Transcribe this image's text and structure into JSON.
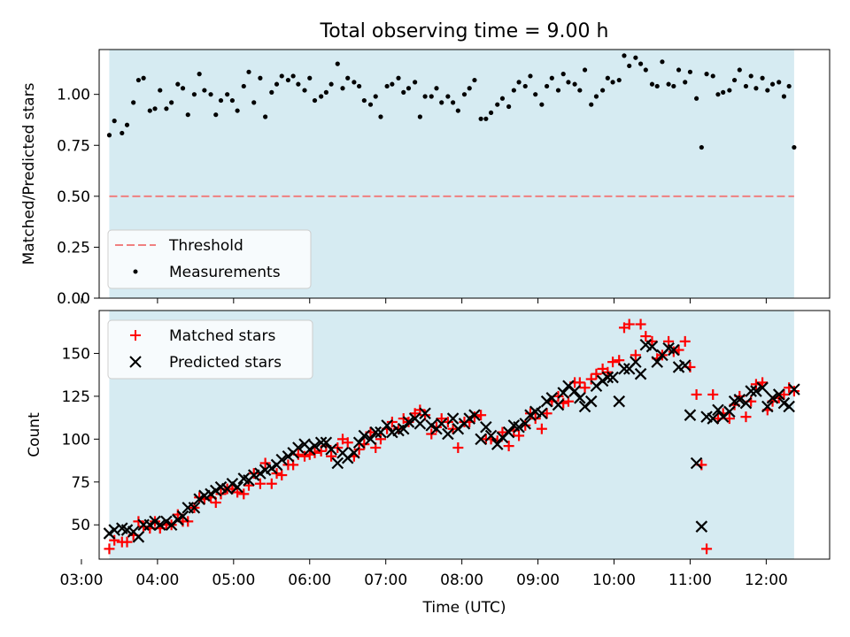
{
  "figure": {
    "title": "Total observing time = 9.00 h",
    "xlabel": "Time (UTC)"
  },
  "colors": {
    "shade": "#add8e6",
    "threshold": "#f08080",
    "matched": "#ff0000",
    "predicted": "#000000",
    "measurements": "#000000"
  },
  "chart_data": [
    {
      "type": "scatter",
      "ylabel": "Matched/Predicted stars",
      "xlim": [
        "03:14",
        "12:50"
      ],
      "ylim": [
        0,
        1.22
      ],
      "yticks": [
        0.0,
        0.25,
        0.5,
        0.75,
        1.0
      ],
      "ytick_labels": [
        "0.00",
        "0.25",
        "0.50",
        "0.75",
        "1.00"
      ],
      "shaded_span": [
        "03:22",
        "12:22"
      ],
      "threshold": 0.5,
      "legend": {
        "position": "lower-left",
        "entries": [
          "Threshold",
          "Measurements"
        ]
      },
      "series": [
        {
          "name": "Measurements",
          "marker": "dot",
          "x": [
            "03:22",
            "03:26",
            "03:32",
            "03:36",
            "03:41",
            "03:45",
            "03:49",
            "03:54",
            "03:58",
            "04:02",
            "04:07",
            "04:11",
            "04:16",
            "04:20",
            "04:24",
            "04:29",
            "04:33",
            "04:37",
            "04:42",
            "04:46",
            "04:50",
            "04:55",
            "04:59",
            "05:03",
            "05:08",
            "05:12",
            "05:16",
            "05:21",
            "05:25",
            "05:30",
            "05:34",
            "05:38",
            "05:43",
            "05:47",
            "05:51",
            "05:56",
            "06:00",
            "06:04",
            "06:09",
            "06:13",
            "06:17",
            "06:22",
            "06:26",
            "06:30",
            "06:35",
            "06:39",
            "06:43",
            "06:48",
            "06:52",
            "06:56",
            "07:01",
            "07:05",
            "07:10",
            "07:14",
            "07:18",
            "07:23",
            "07:27",
            "07:31",
            "07:36",
            "07:40",
            "07:44",
            "07:49",
            "07:53",
            "07:57",
            "08:02",
            "08:06",
            "08:10",
            "08:15",
            "08:19",
            "08:23",
            "08:28",
            "08:32",
            "08:37",
            "08:41",
            "08:45",
            "08:50",
            "08:54",
            "08:58",
            "09:03",
            "09:07",
            "09:11",
            "09:16",
            "09:20",
            "09:24",
            "09:29",
            "09:33",
            "09:37",
            "09:42",
            "09:46",
            "09:51",
            "09:55",
            "09:59",
            "10:04",
            "10:08",
            "10:12",
            "10:17",
            "10:21",
            "10:25",
            "10:30",
            "10:34",
            "10:38",
            "10:43",
            "10:47",
            "10:51",
            "10:56",
            "11:00",
            "11:05",
            "11:09",
            "11:13",
            "11:18",
            "11:22",
            "11:26",
            "11:31",
            "11:35",
            "11:39",
            "11:44",
            "11:48",
            "11:52",
            "11:57",
            "12:01",
            "12:05",
            "12:10",
            "12:14",
            "12:18",
            "12:22"
          ],
          "y": [
            0.8,
            0.87,
            0.81,
            0.85,
            0.96,
            1.07,
            1.08,
            0.92,
            0.93,
            1.02,
            0.93,
            0.96,
            1.05,
            1.03,
            0.9,
            1.0,
            1.1,
            1.02,
            1.0,
            0.9,
            0.97,
            1.0,
            0.97,
            0.92,
            1.04,
            1.11,
            0.96,
            1.08,
            0.89,
            1.01,
            1.05,
            1.09,
            1.07,
            1.09,
            1.05,
            1.02,
            1.08,
            0.97,
            0.99,
            1.01,
            1.05,
            1.15,
            1.03,
            1.08,
            1.06,
            1.04,
            0.97,
            0.95,
            0.99,
            0.89,
            1.04,
            1.05,
            1.08,
            1.01,
            1.03,
            1.06,
            0.89,
            0.99,
            0.99,
            1.03,
            0.96,
            0.99,
            0.96,
            0.92,
            1.0,
            1.03,
            1.07,
            0.88,
            0.88,
            0.91,
            0.95,
            0.98,
            0.94,
            1.02,
            1.06,
            1.04,
            1.09,
            1.0,
            0.95,
            1.04,
            1.08,
            1.02,
            1.1,
            1.06,
            1.05,
            1.02,
            1.12,
            0.95,
            0.99,
            1.02,
            1.08,
            1.06,
            1.07,
            1.19,
            1.14,
            1.18,
            1.15,
            1.12,
            1.05,
            1.04,
            1.16,
            1.05,
            1.04,
            1.12,
            1.06,
            1.11,
            0.98,
            0.74,
            1.1,
            1.09,
            1.0,
            1.01,
            1.02,
            1.07,
            1.12,
            1.04,
            1.09,
            1.03,
            1.08,
            1.02,
            1.05,
            1.06,
            0.99,
            1.04,
            0.74
          ]
        }
      ]
    },
    {
      "type": "scatter",
      "ylabel": "Count",
      "xlim": [
        "03:14",
        "12:50"
      ],
      "ylim": [
        30,
        175
      ],
      "yticks": [
        50,
        75,
        100,
        125,
        150
      ],
      "ytick_labels": [
        "50",
        "75",
        "100",
        "125",
        "150"
      ],
      "xticks": [
        "03:00",
        "04:00",
        "05:00",
        "06:00",
        "07:00",
        "08:00",
        "09:00",
        "10:00",
        "11:00",
        "12:00"
      ],
      "shaded_span": [
        "03:22",
        "12:22"
      ],
      "legend": {
        "position": "upper-left",
        "entries": [
          "Matched stars",
          "Predicted stars"
        ]
      },
      "series": [
        {
          "name": "Matched stars",
          "marker": "plus",
          "x": [
            "03:22",
            "03:26",
            "03:32",
            "03:36",
            "03:41",
            "03:45",
            "03:49",
            "03:54",
            "03:58",
            "04:02",
            "04:07",
            "04:11",
            "04:16",
            "04:20",
            "04:24",
            "04:29",
            "04:33",
            "04:37",
            "04:42",
            "04:46",
            "04:50",
            "04:55",
            "04:59",
            "05:03",
            "05:08",
            "05:12",
            "05:16",
            "05:21",
            "05:25",
            "05:30",
            "05:34",
            "05:38",
            "05:43",
            "05:47",
            "05:51",
            "05:56",
            "06:00",
            "06:04",
            "06:09",
            "06:13",
            "06:17",
            "06:22",
            "06:26",
            "06:30",
            "06:35",
            "06:39",
            "06:43",
            "06:48",
            "06:52",
            "06:56",
            "07:01",
            "07:05",
            "07:10",
            "07:14",
            "07:18",
            "07:23",
            "07:27",
            "07:31",
            "07:36",
            "07:40",
            "07:44",
            "07:49",
            "07:53",
            "07:57",
            "08:02",
            "08:06",
            "08:10",
            "08:15",
            "08:19",
            "08:23",
            "08:28",
            "08:32",
            "08:37",
            "08:41",
            "08:45",
            "08:50",
            "08:54",
            "08:58",
            "09:03",
            "09:07",
            "09:11",
            "09:16",
            "09:20",
            "09:24",
            "09:29",
            "09:33",
            "09:37",
            "09:42",
            "09:46",
            "09:51",
            "09:55",
            "09:59",
            "10:04",
            "10:08",
            "10:12",
            "10:17",
            "10:21",
            "10:25",
            "10:30",
            "10:34",
            "10:38",
            "10:43",
            "10:47",
            "10:51",
            "10:56",
            "11:00",
            "11:05",
            "11:09",
            "11:13",
            "11:18",
            "11:22",
            "11:26",
            "11:31",
            "11:35",
            "11:39",
            "11:44",
            "11:48",
            "11:52",
            "11:57",
            "12:01",
            "12:05",
            "12:10",
            "12:14",
            "12:18",
            "12:22"
          ],
          "y": [
            36,
            41,
            40,
            40,
            44,
            52,
            49,
            48,
            52,
            48,
            50,
            50,
            56,
            52,
            52,
            60,
            66,
            65,
            66,
            63,
            68,
            71,
            71,
            69,
            68,
            73,
            80,
            74,
            86,
            74,
            80,
            79,
            85,
            85,
            91,
            90,
            91,
            92,
            93,
            96,
            90,
            95,
            100,
            98,
            90,
            94,
            97,
            104,
            95,
            100,
            106,
            110,
            106,
            112,
            110,
            115,
            117,
            114,
            103,
            107,
            112,
            110,
            106,
            95,
            110,
            110,
            113,
            114,
            100,
            100,
            99,
            104,
            96,
            105,
            102,
            108,
            115,
            112,
            106,
            115,
            122,
            125,
            121,
            122,
            133,
            133,
            130,
            135,
            138,
            141,
            139,
            145,
            146,
            165,
            167,
            149,
            167,
            160,
            157,
            147,
            149,
            157,
            151,
            152,
            157,
            142,
            126,
            85,
            36,
            126,
            112,
            115,
            112,
            120,
            125,
            113,
            122,
            132,
            133,
            117,
            122,
            124,
            126,
            130,
            128
          ]
        },
        {
          "name": "Predicted stars",
          "marker": "x",
          "x": [
            "03:22",
            "03:26",
            "03:32",
            "03:36",
            "03:41",
            "03:45",
            "03:49",
            "03:54",
            "03:58",
            "04:02",
            "04:07",
            "04:11",
            "04:16",
            "04:20",
            "04:24",
            "04:29",
            "04:33",
            "04:37",
            "04:42",
            "04:46",
            "04:50",
            "04:55",
            "04:59",
            "05:03",
            "05:08",
            "05:12",
            "05:16",
            "05:21",
            "05:25",
            "05:30",
            "05:34",
            "05:38",
            "05:43",
            "05:47",
            "05:51",
            "05:56",
            "06:00",
            "06:04",
            "06:09",
            "06:13",
            "06:17",
            "06:22",
            "06:26",
            "06:30",
            "06:35",
            "06:39",
            "06:43",
            "06:48",
            "06:52",
            "06:56",
            "07:01",
            "07:05",
            "07:10",
            "07:14",
            "07:18",
            "07:23",
            "07:27",
            "07:31",
            "07:36",
            "07:40",
            "07:44",
            "07:49",
            "07:53",
            "07:57",
            "08:02",
            "08:06",
            "08:10",
            "08:15",
            "08:19",
            "08:23",
            "08:28",
            "08:32",
            "08:37",
            "08:41",
            "08:45",
            "08:50",
            "08:54",
            "08:58",
            "09:03",
            "09:07",
            "09:11",
            "09:16",
            "09:20",
            "09:24",
            "09:29",
            "09:33",
            "09:37",
            "09:42",
            "09:46",
            "09:51",
            "09:55",
            "09:59",
            "10:04",
            "10:08",
            "10:12",
            "10:17",
            "10:21",
            "10:25",
            "10:30",
            "10:34",
            "10:38",
            "10:43",
            "10:47",
            "10:51",
            "10:56",
            "11:00",
            "11:05",
            "11:09",
            "11:13",
            "11:18",
            "11:22",
            "11:26",
            "11:31",
            "11:35",
            "11:39",
            "11:44",
            "11:48",
            "11:52",
            "11:57",
            "12:01",
            "12:05",
            "12:10",
            "12:14",
            "12:18",
            "12:22"
          ],
          "y": [
            45,
            47,
            48,
            47,
            46,
            43,
            50,
            50,
            52,
            50,
            52,
            50,
            53,
            55,
            60,
            60,
            65,
            67,
            68,
            70,
            72,
            71,
            74,
            72,
            77,
            76,
            79,
            80,
            82,
            83,
            85,
            88,
            90,
            92,
            95,
            97,
            94,
            96,
            98,
            98,
            94,
            86,
            92,
            89,
            92,
            98,
            102,
            100,
            104,
            104,
            108,
            104,
            105,
            106,
            110,
            112,
            109,
            115,
            108,
            106,
            109,
            103,
            112,
            106,
            109,
            112,
            114,
            100,
            107,
            102,
            97,
            101,
            104,
            108,
            107,
            109,
            114,
            116,
            115,
            122,
            124,
            120,
            127,
            131,
            128,
            124,
            119,
            122,
            131,
            134,
            136,
            136,
            122,
            141,
            141,
            145,
            138,
            155,
            154,
            145,
            149,
            153,
            152,
            142,
            143,
            114,
            86,
            49,
            113,
            112,
            117,
            113,
            116,
            122,
            123,
            121,
            128,
            128,
            130,
            119,
            124,
            126,
            121,
            119,
            129
          ]
        }
      ]
    }
  ]
}
